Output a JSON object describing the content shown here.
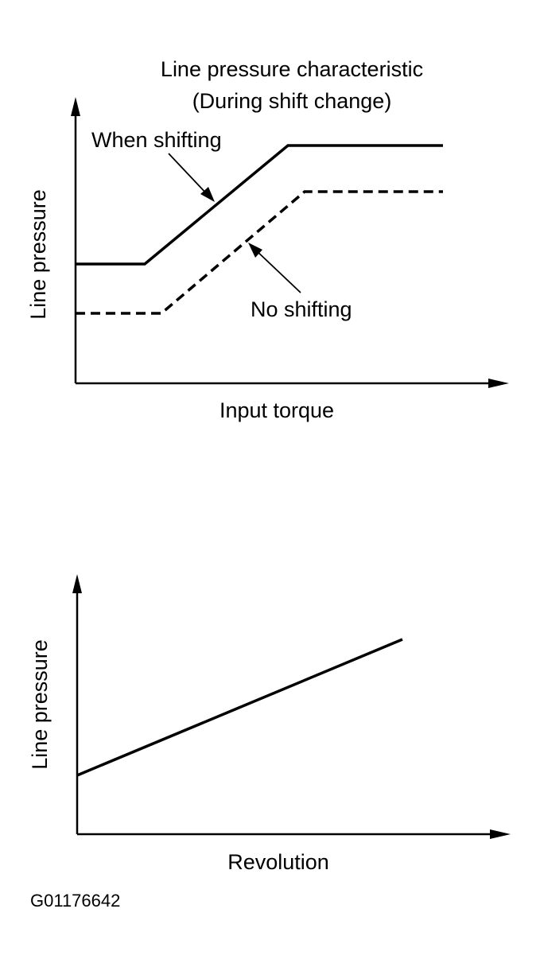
{
  "top_chart": {
    "title_lines": [
      "Line pressure characteristic",
      "(During shift change)"
    ],
    "y_label": "Line pressure",
    "x_label": "Input torque",
    "annotations": [
      "When shifting",
      "No shifting"
    ]
  },
  "bottom_chart": {
    "y_label": "Line pressure",
    "x_label": "Revolution"
  },
  "figure_id": "G01176642"
}
